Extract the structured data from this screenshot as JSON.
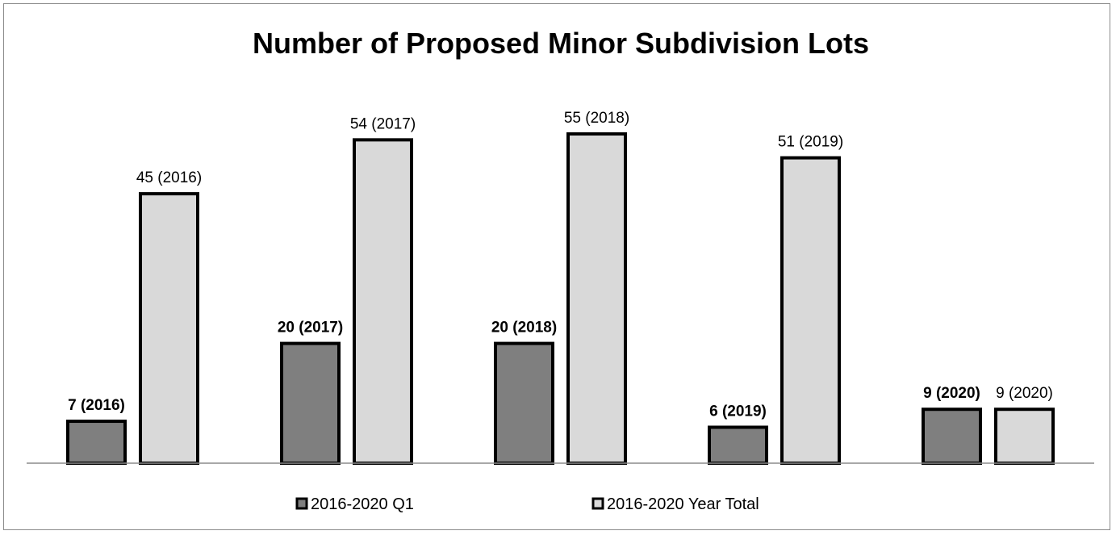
{
  "chart_data": {
    "type": "bar",
    "title": "Number of Proposed Minor Subdivision Lots",
    "xlabel": "",
    "ylabel": "",
    "categories": [
      "2016",
      "2017",
      "2018",
      "2019",
      "2020"
    ],
    "ylim": [
      0,
      60
    ],
    "grid": false,
    "legend_position": "bottom",
    "series": [
      {
        "name": "2016-2020 Q1",
        "color": "#7f7f7f",
        "values": [
          7,
          20,
          20,
          6,
          9
        ],
        "labels": [
          "7 (2016)",
          "20 (2017)",
          "20 (2018)",
          "6 (2019)",
          "9 (2020)"
        ],
        "label_bold": true
      },
      {
        "name": "2016-2020 Year Total",
        "color": "#d9d9d9",
        "values": [
          45,
          54,
          55,
          51,
          9
        ],
        "labels": [
          "45 (2016)",
          "54 (2017)",
          "55 (2018)",
          "51 (2019)",
          "9 (2020)"
        ],
        "label_bold": false
      }
    ]
  }
}
